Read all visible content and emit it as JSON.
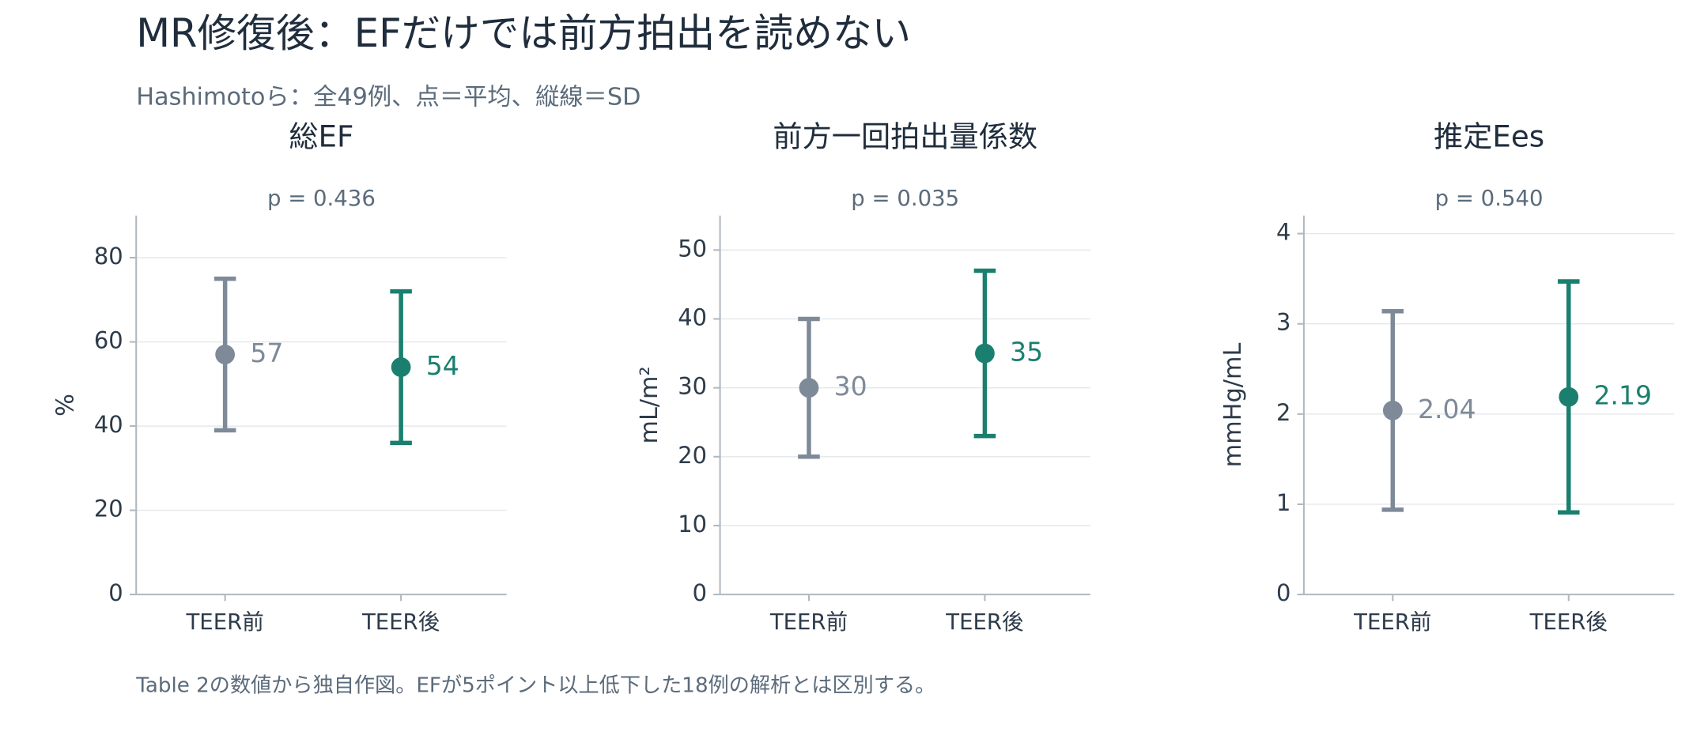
{
  "title": "MR修復後：EFだけでは前方拍出を読めない",
  "subtitle": "Hashimotoら：全49例、点＝平均、縦線＝SD",
  "note": "Table 2の数値から独自作図。EFが5ポイント以上低下した18例の解析とは区別する。",
  "chart_data": [
    {
      "type": "errorbar",
      "title": "総EF",
      "annotation": "p = 0.436",
      "ylabel": "%",
      "categories": [
        "TEER前",
        "TEER後"
      ],
      "values": [
        57,
        54
      ],
      "errors": [
        18,
        18
      ],
      "colors": [
        "#7f8a99",
        "#1a7f6e"
      ],
      "ylim": [
        0,
        90
      ],
      "yticks": [
        0,
        20,
        40,
        60,
        80
      ],
      "grid": true
    },
    {
      "type": "errorbar",
      "title": "前方一回拍出量係数",
      "annotation": "p = 0.035",
      "ylabel": "mL/m²",
      "categories": [
        "TEER前",
        "TEER後"
      ],
      "values": [
        30,
        35
      ],
      "errors": [
        10,
        12
      ],
      "colors": [
        "#7f8a99",
        "#1a7f6e"
      ],
      "ylim": [
        0,
        55
      ],
      "yticks": [
        0,
        10,
        20,
        30,
        40,
        50
      ],
      "grid": true
    },
    {
      "type": "errorbar",
      "title": "推定Ees",
      "annotation": "p = 0.540",
      "ylabel": "mmHg/mL",
      "categories": [
        "TEER前",
        "TEER後"
      ],
      "values": [
        2.04,
        2.19
      ],
      "errors": [
        1.1,
        1.28
      ],
      "colors": [
        "#7f8a99",
        "#1a7f6e"
      ],
      "ylim": [
        0,
        4.2
      ],
      "yticks": [
        0,
        1,
        2,
        3,
        4
      ],
      "grid": true
    }
  ]
}
